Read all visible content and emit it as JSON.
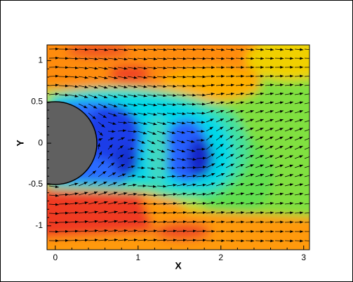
{
  "chart_data": {
    "type": "vector-contour",
    "x_label": "X",
    "y_label": "Y",
    "xlim": [
      -0.1,
      3.07
    ],
    "ylim": [
      -1.29,
      1.19
    ],
    "xticks": [
      0,
      1,
      2,
      3
    ],
    "yticks": [
      -1,
      -0.5,
      0,
      0.5,
      1
    ]
  }
}
